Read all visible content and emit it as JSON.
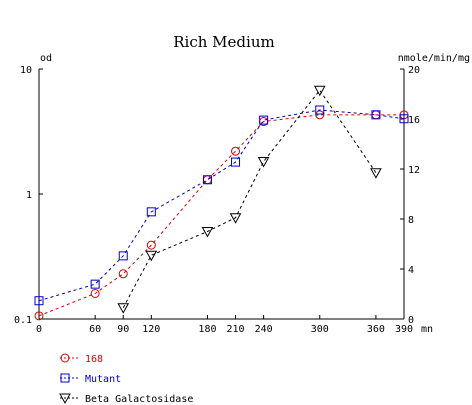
{
  "chart_data": {
    "type": "line",
    "title": "Rich Medium",
    "x_unit": "mn",
    "x_ticks": [
      0,
      60,
      90,
      120,
      180,
      210,
      240,
      300,
      360,
      390
    ],
    "xlim": [
      0,
      390
    ],
    "left_axis": {
      "unit": "od",
      "scale": "log",
      "ylim": [
        0.1,
        10
      ],
      "ticks": [
        "0.1",
        "1",
        "10"
      ]
    },
    "right_axis": {
      "unit": "nmole/min/mg",
      "scale": "linear",
      "ylim": [
        0,
        20
      ],
      "ticks": [
        "0",
        "4",
        "8",
        "12",
        "16",
        "20"
      ]
    },
    "grid": false,
    "legend_position": "bottom-left",
    "series": [
      {
        "name": "168",
        "axis": "left",
        "color": "#dd0000",
        "marker": "circle",
        "x": [
          0,
          60,
          90,
          120,
          180,
          210,
          240,
          300,
          360,
          390
        ],
        "y": [
          0.106,
          0.16,
          0.23,
          0.39,
          1.3,
          2.2,
          3.8,
          4.3,
          4.3,
          4.3
        ]
      },
      {
        "name": "Mutant",
        "axis": "left",
        "color": "#0000cc",
        "marker": "square",
        "x": [
          0,
          60,
          90,
          120,
          180,
          210,
          240,
          300,
          360,
          390
        ],
        "y": [
          0.14,
          0.19,
          0.32,
          0.72,
          1.3,
          1.8,
          3.9,
          4.7,
          4.3,
          4.0
        ]
      },
      {
        "name": "Beta Galactosidase",
        "axis": "right",
        "color": "#000000",
        "marker": "triangle-down",
        "x": [
          90,
          120,
          180,
          210,
          240,
          300,
          360
        ],
        "y": [
          0.9,
          5.1,
          7.0,
          8.1,
          12.6,
          18.3,
          11.7
        ]
      }
    ]
  }
}
